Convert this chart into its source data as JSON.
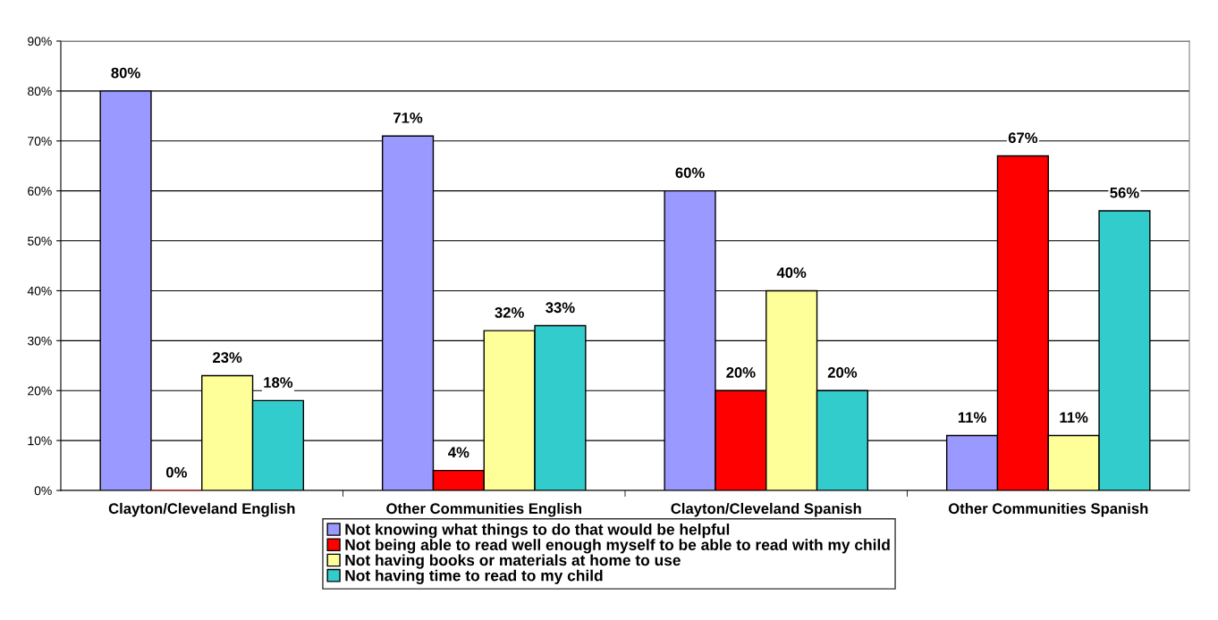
{
  "chart_data": {
    "type": "bar",
    "categories": [
      "Clayton/Cleveland English",
      "Other Communities English",
      "Clayton/Cleveland Spanish",
      "Other Communities Spanish"
    ],
    "series": [
      {
        "name": "Not knowing what things to do that would be helpful",
        "color": "#9999ff",
        "values": [
          80,
          71,
          60,
          11
        ],
        "value_labels": [
          "80%",
          "71%",
          "60%",
          "11%"
        ]
      },
      {
        "name": "Not being able to read well enough myself to be able to read with my child",
        "color": "#ff0000",
        "values": [
          0,
          4,
          20,
          67
        ],
        "value_labels": [
          "0%",
          "4%",
          "20%",
          "67%"
        ]
      },
      {
        "name": "Not having books or materials at home to use",
        "color": "#ffff99",
        "values": [
          23,
          32,
          40,
          11
        ],
        "value_labels": [
          "23%",
          "32%",
          "40%",
          "11%"
        ]
      },
      {
        "name": "Not having time to read to my child",
        "color": "#33cccc",
        "values": [
          18,
          33,
          20,
          56
        ],
        "value_labels": [
          "18%",
          "33%",
          "20%",
          "56%"
        ]
      }
    ],
    "ylim": [
      0,
      90
    ],
    "yticks": [
      {
        "value": 0,
        "label": "0%"
      },
      {
        "value": 10,
        "label": "10%"
      },
      {
        "value": 20,
        "label": "20%"
      },
      {
        "value": 30,
        "label": "30%"
      },
      {
        "value": 40,
        "label": "40%"
      },
      {
        "value": 50,
        "label": "50%"
      },
      {
        "value": 60,
        "label": "60%"
      },
      {
        "value": 70,
        "label": "70%"
      },
      {
        "value": 80,
        "label": "80%"
      },
      {
        "value": 90,
        "label": "90%"
      }
    ],
    "grid": "y",
    "legend": "bottom"
  }
}
